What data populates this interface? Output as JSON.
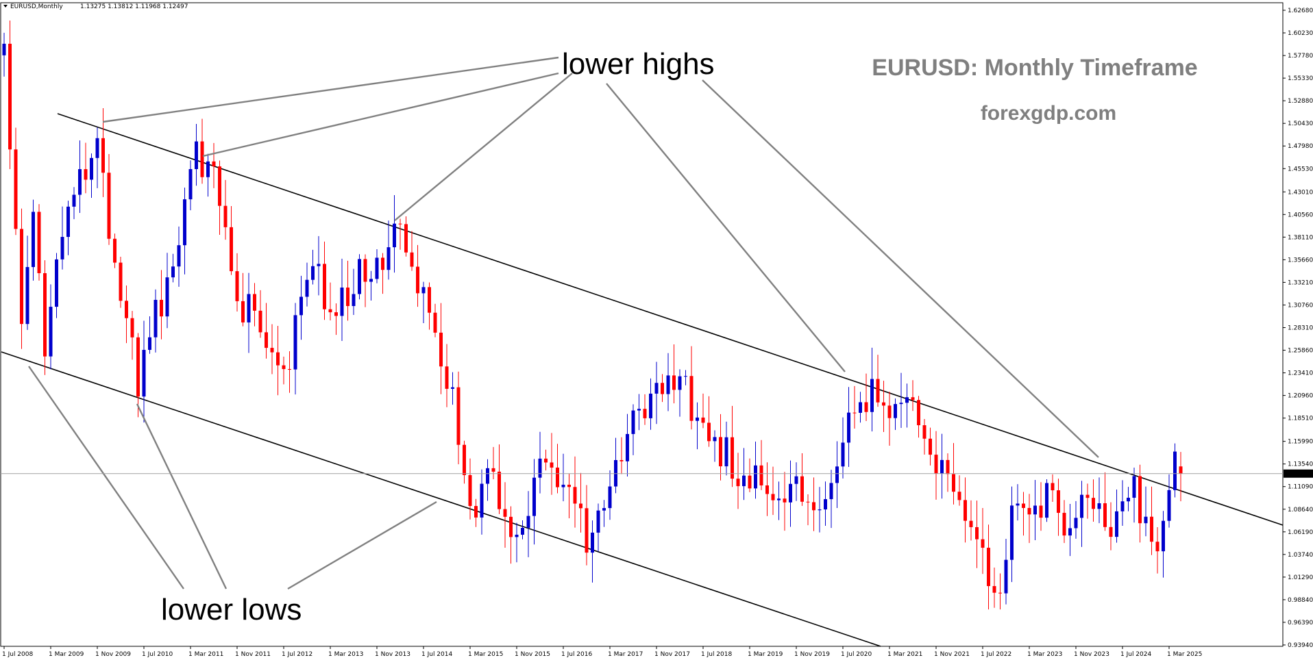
{
  "chart_data": {
    "type": "candlestick",
    "symbol_line": "EURUSD,Monthly",
    "ohlc_readout": "1.13275 1.13812 1.11968 1.12497",
    "current_price_label": "1.12497",
    "current_price": 1.12497,
    "ylim": [
      0.9394,
      1.6268
    ],
    "y_ticks": [
      "1.62680",
      "1.60230",
      "1.57780",
      "1.55330",
      "1.52880",
      "1.50430",
      "1.47980",
      "1.45530",
      "1.43010",
      "1.40560",
      "1.38110",
      "1.35660",
      "1.33210",
      "1.30760",
      "1.28310",
      "1.25860",
      "1.23410",
      "1.20960",
      "1.18510",
      "1.15990",
      "1.13540",
      "1.11090",
      "1.08640",
      "1.06190",
      "1.03740",
      "1.01290",
      "0.98840",
      "0.96390",
      "0.93940"
    ],
    "x_ticks": [
      "1 Jul 2008",
      "1 Mar 2009",
      "1 Nov 2009",
      "1 Jul 2010",
      "1 Mar 2011",
      "1 Nov 2011",
      "1 Jul 2012",
      "1 Mar 2013",
      "1 Nov 2013",
      "1 Jul 2014",
      "1 Mar 2015",
      "1 Nov 2015",
      "1 Jul 2016",
      "1 Mar 2017",
      "1 Nov 2017",
      "1 Jul 2018",
      "1 Mar 2019",
      "1 Nov 2019",
      "1 Jul 2020",
      "1 Mar 2021",
      "1 Nov 2021",
      "1 Jul 2022",
      "1 Mar 2023",
      "1 Nov 2023",
      "1 Jul 2024",
      "1 Mar 2025"
    ],
    "start_month": "Jul 2008",
    "up_color": "#0000cc",
    "down_color": "#ff0000",
    "grid": false,
    "anchors": [
      [
        "2008-07",
        1.57
      ],
      [
        "2008-10",
        1.27
      ],
      [
        "2008-12",
        1.4
      ],
      [
        "2009-02",
        1.27
      ],
      [
        "2009-06",
        1.41
      ],
      [
        "2009-11",
        1.5
      ],
      [
        "2010-01",
        1.39
      ],
      [
        "2010-06",
        1.22
      ],
      [
        "2010-08",
        1.29
      ],
      [
        "2010-12",
        1.33
      ],
      [
        "2011-04",
        1.48
      ],
      [
        "2011-07",
        1.44
      ],
      [
        "2011-12",
        1.29
      ],
      [
        "2012-01",
        1.31
      ],
      [
        "2012-07",
        1.23
      ],
      [
        "2012-09",
        1.29
      ],
      [
        "2013-01",
        1.36
      ],
      [
        "2013-03",
        1.28
      ],
      [
        "2013-07",
        1.33
      ],
      [
        "2013-11",
        1.36
      ],
      [
        "2014-03",
        1.38
      ],
      [
        "2014-05",
        1.36
      ],
      [
        "2014-09",
        1.26
      ],
      [
        "2014-12",
        1.21
      ],
      [
        "2015-03",
        1.08
      ],
      [
        "2015-06",
        1.12
      ],
      [
        "2015-11",
        1.06
      ],
      [
        "2016-04",
        1.14
      ],
      [
        "2016-06",
        1.11
      ],
      [
        "2016-12",
        1.05
      ],
      [
        "2017-08",
        1.19
      ],
      [
        "2018-01",
        1.24
      ],
      [
        "2018-03",
        1.23
      ],
      [
        "2018-06",
        1.17
      ],
      [
        "2019-03",
        1.12
      ],
      [
        "2019-09",
        1.1
      ],
      [
        "2020-02",
        1.1
      ],
      [
        "2020-06",
        1.12
      ],
      [
        "2020-08",
        1.18
      ],
      [
        "2020-12",
        1.22
      ],
      [
        "2021-04",
        1.2
      ],
      [
        "2021-05",
        1.22
      ],
      [
        "2021-09",
        1.16
      ],
      [
        "2021-12",
        1.14
      ],
      [
        "2022-02",
        1.12
      ],
      [
        "2022-06",
        1.05
      ],
      [
        "2022-09",
        0.98
      ],
      [
        "2022-12",
        1.07
      ],
      [
        "2023-01",
        1.09
      ],
      [
        "2023-07",
        1.1
      ],
      [
        "2023-09",
        1.06
      ],
      [
        "2023-12",
        1.1
      ],
      [
        "2024-04",
        1.07
      ],
      [
        "2024-07",
        1.08
      ],
      [
        "2024-09",
        1.11
      ],
      [
        "2024-12",
        1.035
      ],
      [
        "2025-01",
        1.04
      ],
      [
        "2025-04",
        1.13
      ],
      [
        "2025-05",
        1.1325
      ]
    ],
    "annotations": [
      {
        "text": "lower highs"
      },
      {
        "text": "lower lows"
      }
    ]
  },
  "watermark": {
    "title": "EURUSD: Monthly Timeframe",
    "site": "forexgdp.com"
  }
}
